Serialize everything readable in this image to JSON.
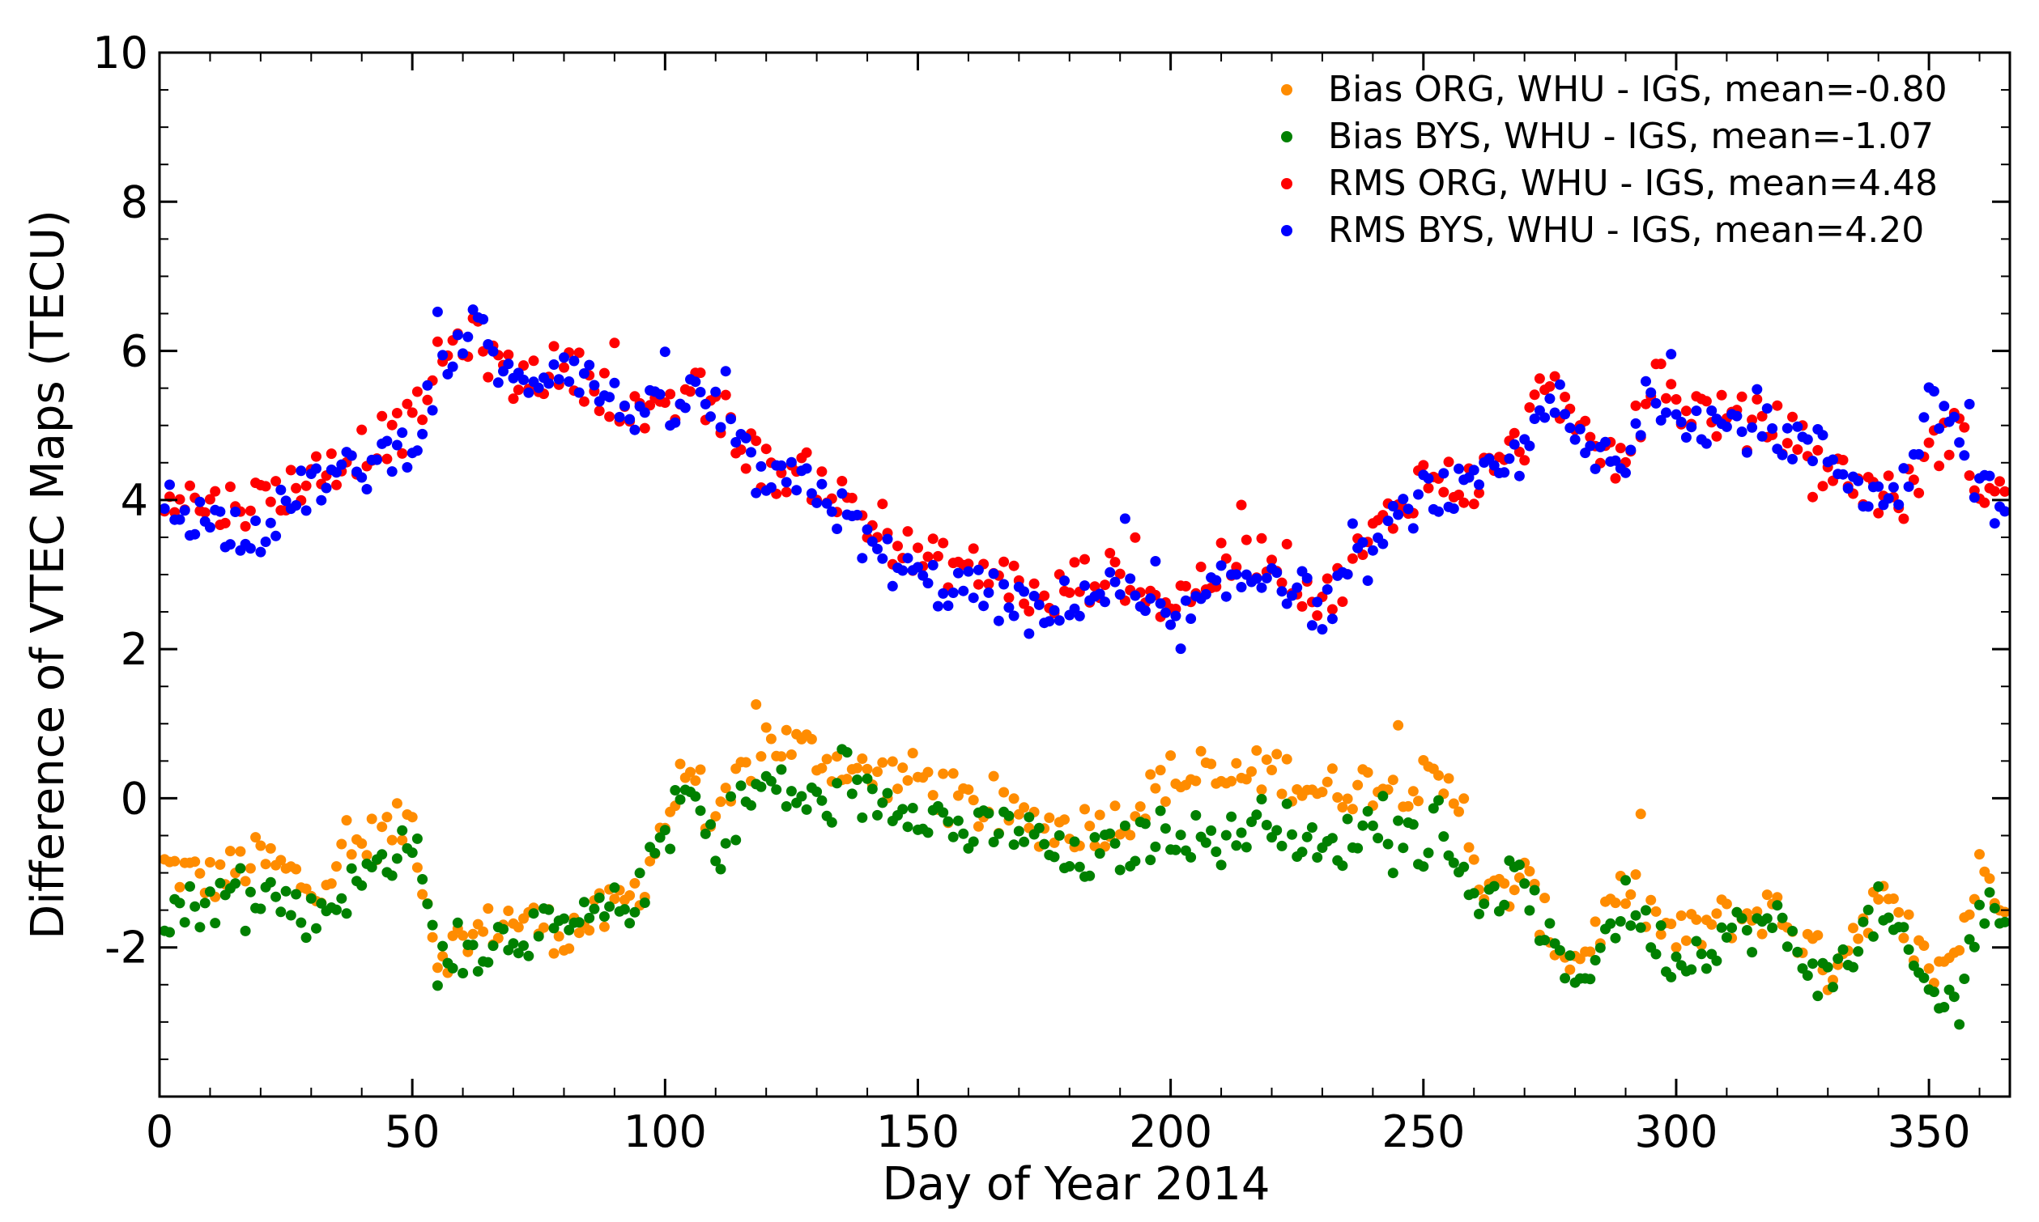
{
  "chart_data": {
    "type": "scatter",
    "title": "",
    "xlabel": "Day of Year 2014",
    "ylabel": "Difference of VTEC Maps (TECU)",
    "xlim": [
      0,
      366
    ],
    "ylim": [
      -4,
      10
    ],
    "xticks": [
      0,
      50,
      100,
      150,
      200,
      250,
      300,
      350
    ],
    "yticks": [
      -2,
      0,
      2,
      4,
      6,
      8,
      10
    ],
    "legend_position": "top-right",
    "series": [
      {
        "name": "Bias ORG, WHU - IGS, mean=-0.80",
        "color": "#ff8c00",
        "anchors_x": [
          0,
          10,
          20,
          30,
          40,
          50,
          55,
          60,
          70,
          80,
          90,
          95,
          100,
          105,
          110,
          115,
          120,
          130,
          140,
          150,
          160,
          170,
          180,
          190,
          200,
          210,
          220,
          230,
          240,
          250,
          258,
          262,
          270,
          275,
          280,
          290,
          300,
          310,
          320,
          330,
          340,
          350,
          355,
          360,
          366
        ],
        "anchors_y": [
          -0.9,
          -1.1,
          -0.8,
          -1.2,
          -0.6,
          -0.3,
          -2.1,
          -1.9,
          -1.6,
          -1.8,
          -1.5,
          -1.2,
          -0.3,
          0.5,
          -0.5,
          0.3,
          0.8,
          0.6,
          0.3,
          0.3,
          -0.1,
          -0.3,
          -0.4,
          -0.3,
          0.3,
          0.2,
          0.4,
          0.1,
          0.2,
          0.2,
          0.0,
          -1.4,
          -1.1,
          -1.8,
          -2.2,
          -1.2,
          -1.9,
          -1.6,
          -1.5,
          -2.3,
          -1.3,
          -2.3,
          -2.1,
          -1.0,
          -1.3
        ]
      },
      {
        "name": "Bias BYS, WHU -  IGS, mean=-1.07",
        "color": "#008000",
        "anchors_x": [
          0,
          10,
          20,
          30,
          40,
          50,
          55,
          60,
          70,
          80,
          90,
          95,
          100,
          105,
          110,
          115,
          120,
          130,
          140,
          150,
          160,
          170,
          180,
          190,
          200,
          210,
          220,
          230,
          240,
          250,
          258,
          262,
          270,
          275,
          280,
          290,
          300,
          310,
          320,
          330,
          340,
          350,
          355,
          360,
          366
        ],
        "anchors_y": [
          -1.5,
          -1.4,
          -1.2,
          -1.6,
          -1.1,
          -0.5,
          -2.2,
          -2.1,
          -1.8,
          -1.8,
          -1.5,
          -1.3,
          -0.4,
          0.1,
          -0.8,
          -0.1,
          0.2,
          -0.1,
          0.0,
          -0.1,
          -0.5,
          -0.4,
          -0.9,
          -0.7,
          -0.4,
          -0.6,
          -0.2,
          -0.8,
          -0.3,
          -0.6,
          -0.9,
          -1.5,
          -1.1,
          -2.0,
          -2.5,
          -1.4,
          -2.2,
          -1.8,
          -1.7,
          -2.5,
          -1.5,
          -2.6,
          -2.8,
          -1.5,
          -1.6
        ]
      },
      {
        "name": "RMS ORG, WHU - IGS, mean=4.48",
        "color": "#ff0000",
        "anchors_x": [
          0,
          10,
          20,
          30,
          40,
          50,
          55,
          60,
          63,
          70,
          80,
          90,
          100,
          105,
          110,
          115,
          120,
          130,
          140,
          150,
          160,
          170,
          175,
          180,
          190,
          200,
          210,
          220,
          230,
          240,
          250,
          260,
          270,
          275,
          280,
          290,
          295,
          300,
          310,
          320,
          330,
          340,
          345,
          350,
          355,
          360,
          366
        ],
        "anchors_y": [
          4.2,
          3.9,
          4.0,
          4.3,
          4.7,
          5.0,
          5.8,
          6.2,
          6.1,
          5.6,
          5.8,
          5.4,
          5.0,
          5.6,
          5.1,
          4.8,
          4.4,
          4.3,
          3.7,
          3.2,
          3.1,
          2.9,
          2.5,
          2.9,
          3.0,
          2.6,
          3.1,
          3.3,
          2.6,
          3.5,
          4.3,
          4.2,
          4.8,
          5.8,
          4.8,
          4.5,
          5.6,
          5.3,
          5.1,
          5.0,
          4.4,
          4.1,
          4.0,
          4.6,
          5.0,
          4.2,
          4.0
        ]
      },
      {
        "name": "RMS BYS, WHU - IGS, mean=4.20",
        "color": "#0000ff",
        "anchors_x": [
          0,
          10,
          20,
          30,
          40,
          50,
          55,
          60,
          63,
          70,
          80,
          90,
          100,
          105,
          110,
          115,
          120,
          130,
          140,
          150,
          160,
          170,
          175,
          180,
          190,
          200,
          210,
          220,
          230,
          240,
          250,
          260,
          270,
          275,
          280,
          290,
          295,
          300,
          310,
          320,
          330,
          340,
          345,
          350,
          355,
          360,
          366
        ],
        "anchors_y": [
          4.0,
          3.7,
          3.6,
          4.2,
          4.4,
          4.8,
          5.6,
          6.2,
          6.3,
          5.5,
          5.9,
          5.3,
          5.1,
          5.4,
          5.2,
          4.6,
          4.2,
          4.2,
          3.4,
          2.9,
          2.8,
          2.6,
          2.3,
          2.7,
          2.8,
          2.2,
          2.8,
          3.1,
          2.5,
          3.3,
          4.1,
          4.1,
          4.6,
          5.6,
          4.7,
          4.4,
          5.5,
          5.2,
          5.0,
          4.9,
          4.6,
          4.0,
          4.2,
          5.2,
          5.1,
          4.1,
          3.9
        ]
      }
    ]
  }
}
